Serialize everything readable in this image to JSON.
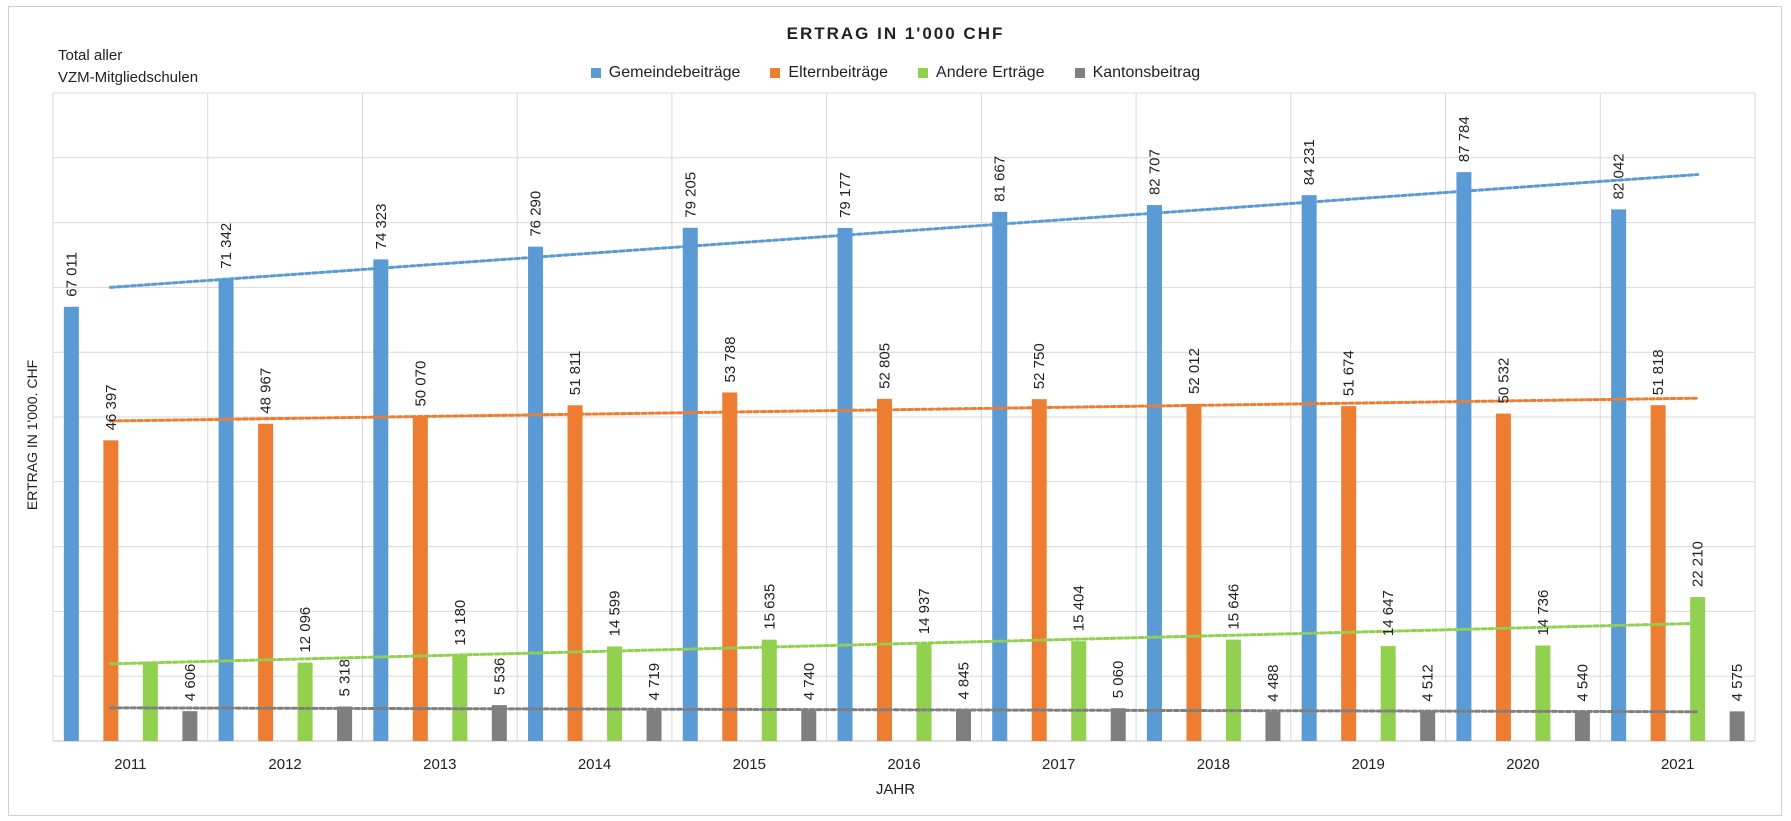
{
  "chart_data": {
    "type": "bar",
    "title": "ERTRAG IN 1'000 CHF",
    "note": [
      "Total aller",
      "VZM-Mitgliedschulen"
    ],
    "xlabel": "JAHR",
    "ylabel": "ERTRAG IN 1'000. CHF",
    "ylim": [
      0,
      100000
    ],
    "grid": true,
    "legend_position": "top",
    "trendlines": true,
    "categories": [
      "2011",
      "2012",
      "2013",
      "2014",
      "2015",
      "2016",
      "2017",
      "2018",
      "2019",
      "2020",
      "2021"
    ],
    "series": [
      {
        "name": "Gemeindebeiträge",
        "color": "#5b9bd5",
        "values": [
          67011,
          71342,
          74323,
          76290,
          79205,
          79177,
          81667,
          82707,
          84231,
          87784,
          82042
        ],
        "labels": [
          "67 011",
          "71 342",
          "74 323",
          "76 290",
          "79 205",
          "79 177",
          "81 667",
          "82 707",
          "84 231",
          "87 784",
          "82 042"
        ]
      },
      {
        "name": "Elternbeiträge",
        "color": "#ed7d31",
        "values": [
          46397,
          48967,
          50070,
          51811,
          53788,
          52805,
          52750,
          52012,
          51674,
          50532,
          51818
        ],
        "labels": [
          "46 397",
          "48 967",
          "50 070",
          "51 811",
          "53 788",
          "52 805",
          "52 750",
          "52 012",
          "51 674",
          "50 532",
          "51 818"
        ]
      },
      {
        "name": "Andere Erträge",
        "color": "#92d050",
        "values": [
          12240,
          12096,
          13180,
          14599,
          15635,
          14937,
          15404,
          15646,
          14647,
          14736,
          22210
        ],
        "labels": [
          "",
          "12 096",
          "13 180",
          "14 599",
          "15 635",
          "14 937",
          "15 404",
          "15 646",
          "14 647",
          "14 736",
          "22 210"
        ]
      },
      {
        "name": "Kantonsbeitrag",
        "color": "#7f7f7f",
        "values": [
          4606,
          5318,
          5536,
          4719,
          4740,
          4845,
          5060,
          4488,
          4512,
          4540,
          4575
        ],
        "labels": [
          "4 606",
          "5 318",
          "5 536",
          "4 719",
          "4 740",
          "4 845",
          "5 060",
          "4 488",
          "4 512",
          "4 540",
          "4 575"
        ]
      }
    ]
  }
}
